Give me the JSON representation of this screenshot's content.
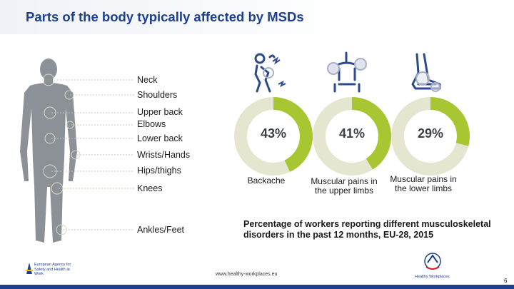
{
  "title": "Parts of the body typically affected by MSDs",
  "body_labels": [
    {
      "id": "neck",
      "text": "Neck"
    },
    {
      "id": "shoulders",
      "text": "Shoulders"
    },
    {
      "id": "upper-back",
      "text": "Upper back"
    },
    {
      "id": "elbows",
      "text": "Elbows"
    },
    {
      "id": "lower-back",
      "text": "Lower back"
    },
    {
      "id": "wrists-hands",
      "text": "Wrists/Hands"
    },
    {
      "id": "hips-thighs",
      "text": "Hips/thighs"
    },
    {
      "id": "knees",
      "text": "Knees"
    },
    {
      "id": "ankles-feet",
      "text": "Ankles/Feet"
    }
  ],
  "chart_data": {
    "type": "pie",
    "categories": [
      "Backache",
      "Muscular pains in the upper limbs",
      "Muscular pains in the lower limbs"
    ],
    "values": [
      43,
      41,
      29
    ],
    "value_labels": [
      "43%",
      "41%",
      "29%"
    ],
    "title": "",
    "caption": "Percentage of workers reporting different musculoskeletal disorders in the past 12 months, EU-28, 2015"
  },
  "colors": {
    "accent_green": "#a8c532",
    "track": "#e5e6cf",
    "brand_blue": "#1c3f8f",
    "icon_blue": "#2d4a8c"
  },
  "footer": {
    "url": "www.healthy-workplaces.eu",
    "agency": "European Agency for Safety and Health at Work",
    "campaign": "Healthy Workplaces",
    "page": "6"
  }
}
